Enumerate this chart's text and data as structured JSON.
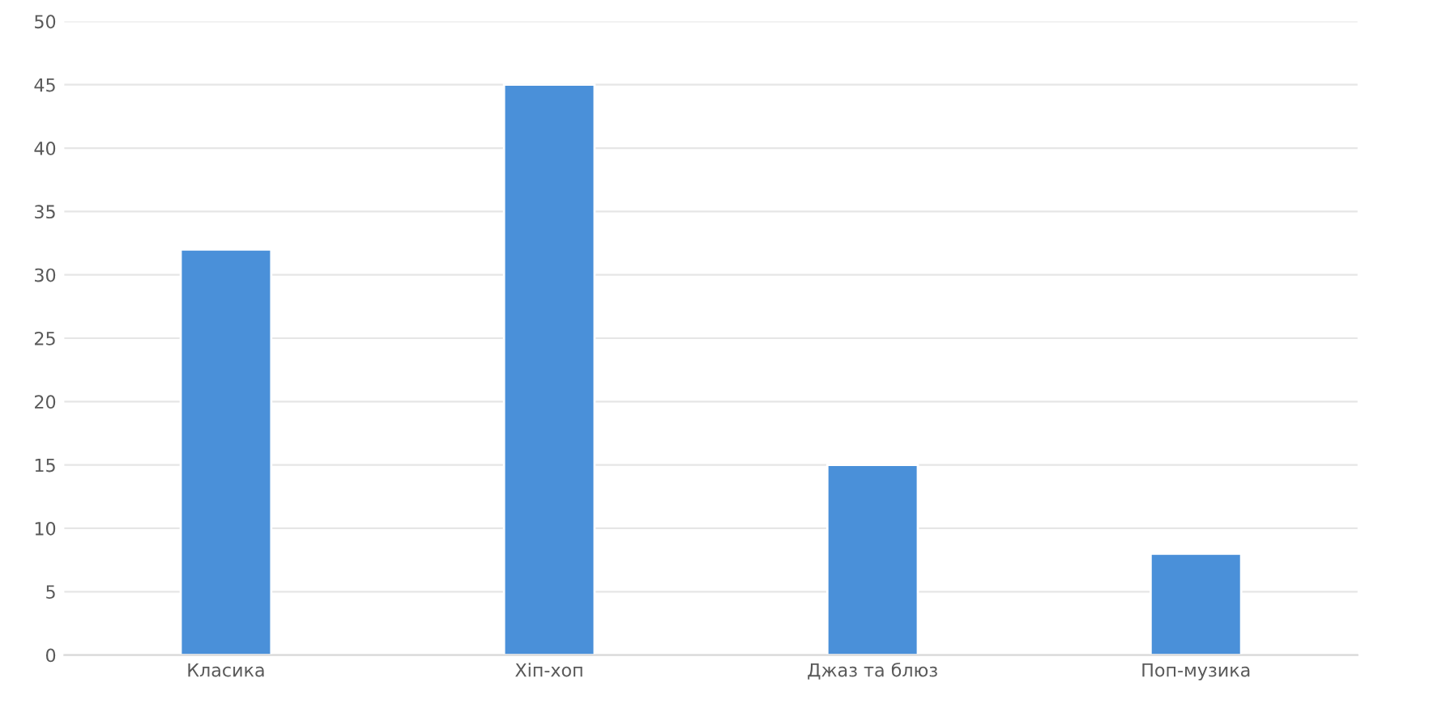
{
  "chart_data": {
    "type": "bar",
    "categories": [
      "Класика",
      "Хіп-хоп",
      "Джаз та блюз",
      "Поп-музика"
    ],
    "values": [
      32,
      45,
      15,
      8
    ],
    "color": "#4a90d9",
    "ylim": [
      0,
      50
    ],
    "yticks": [
      0,
      5,
      10,
      15,
      20,
      25,
      30,
      35,
      40,
      45,
      50
    ],
    "grid": "y"
  }
}
